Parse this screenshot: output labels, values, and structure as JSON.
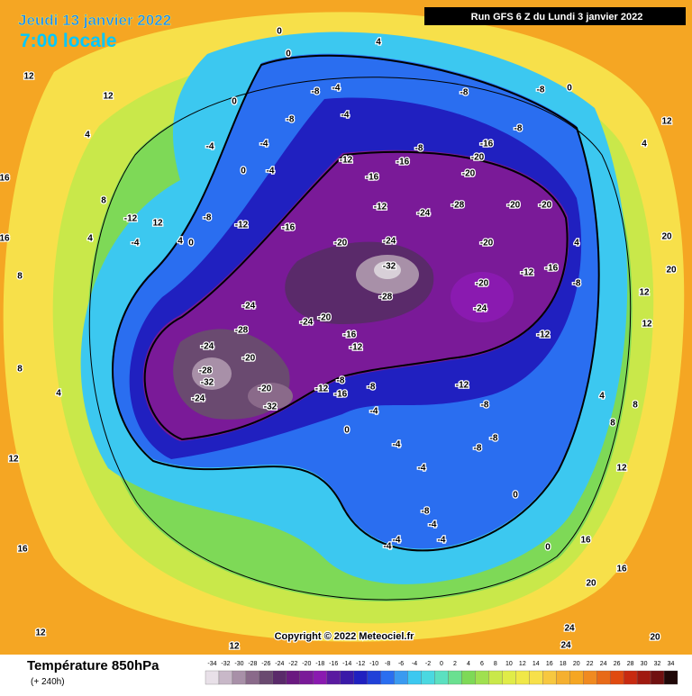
{
  "header": {
    "date": "Jeudi 13 janvier 2022",
    "time": "7:00 locale",
    "run": "Run GFS 6 Z du Lundi 3 janvier 2022"
  },
  "footer": {
    "title": "Température 850hPa",
    "lead": "(+ 240h)",
    "copyright": "Copyright © 2022 Meteociel.fr"
  },
  "legend": {
    "ticks": [
      -34,
      -32,
      -30,
      -28,
      -26,
      -24,
      -22,
      -20,
      -18,
      -16,
      -14,
      -12,
      -10,
      -8,
      -6,
      -4,
      -2,
      0,
      2,
      4,
      6,
      8,
      10,
      12,
      14,
      16,
      18,
      20,
      22,
      24,
      26,
      28,
      30,
      32,
      34
    ],
    "colors": [
      "#e8e0e8",
      "#c8b8c8",
      "#a890a8",
      "#8a6a8a",
      "#6a4a70",
      "#5a2a6a",
      "#6a1a80",
      "#7a1a98",
      "#8a1ab0",
      "#5a1aa0",
      "#3a1aa8",
      "#2020c0",
      "#2040d8",
      "#2a6ef0",
      "#3a9af0",
      "#3cc8f0",
      "#4ad8e0",
      "#5be0c0",
      "#6ae090",
      "#7ed957",
      "#a0e050",
      "#c9e84a",
      "#e0ec48",
      "#f0e848",
      "#f7e04a",
      "#f7c840",
      "#f5b030",
      "#f5a623",
      "#f08a20",
      "#e86a18",
      "#e04a10",
      "#c82a10",
      "#a01a10",
      "#701010",
      "#200808"
    ]
  },
  "map": {
    "labels": [
      12,
      12,
      4,
      16,
      16,
      8,
      8,
      4,
      12,
      16,
      12,
      12,
      0,
      0,
      -8,
      -4,
      -4,
      -8,
      0,
      -4,
      -4,
      0,
      -4,
      -12,
      -16,
      -16,
      -8,
      -8,
      -16,
      -8,
      -20,
      -20,
      -28,
      -24,
      -12,
      -24,
      -20,
      -16,
      -20,
      -20,
      -20,
      -32,
      -28,
      -20,
      -24,
      -12,
      -16,
      -8,
      -12,
      -24,
      -28,
      -24,
      -20,
      -24,
      -20,
      -16,
      -12,
      -28,
      -32,
      -24,
      -20,
      -32,
      -12,
      -8,
      -16,
      -8,
      -4,
      -12,
      -8,
      -8,
      -8,
      0,
      -4,
      -4,
      -8,
      -4,
      -4,
      -4,
      -4,
      0,
      0,
      16,
      16,
      20,
      24,
      24,
      20,
      20,
      20,
      12,
      12,
      12,
      8,
      8,
      4,
      4,
      -8,
      0,
      4,
      12,
      4,
      8,
      -12,
      12,
      -8,
      -12,
      4,
      0,
      -4,
      4
    ]
  }
}
